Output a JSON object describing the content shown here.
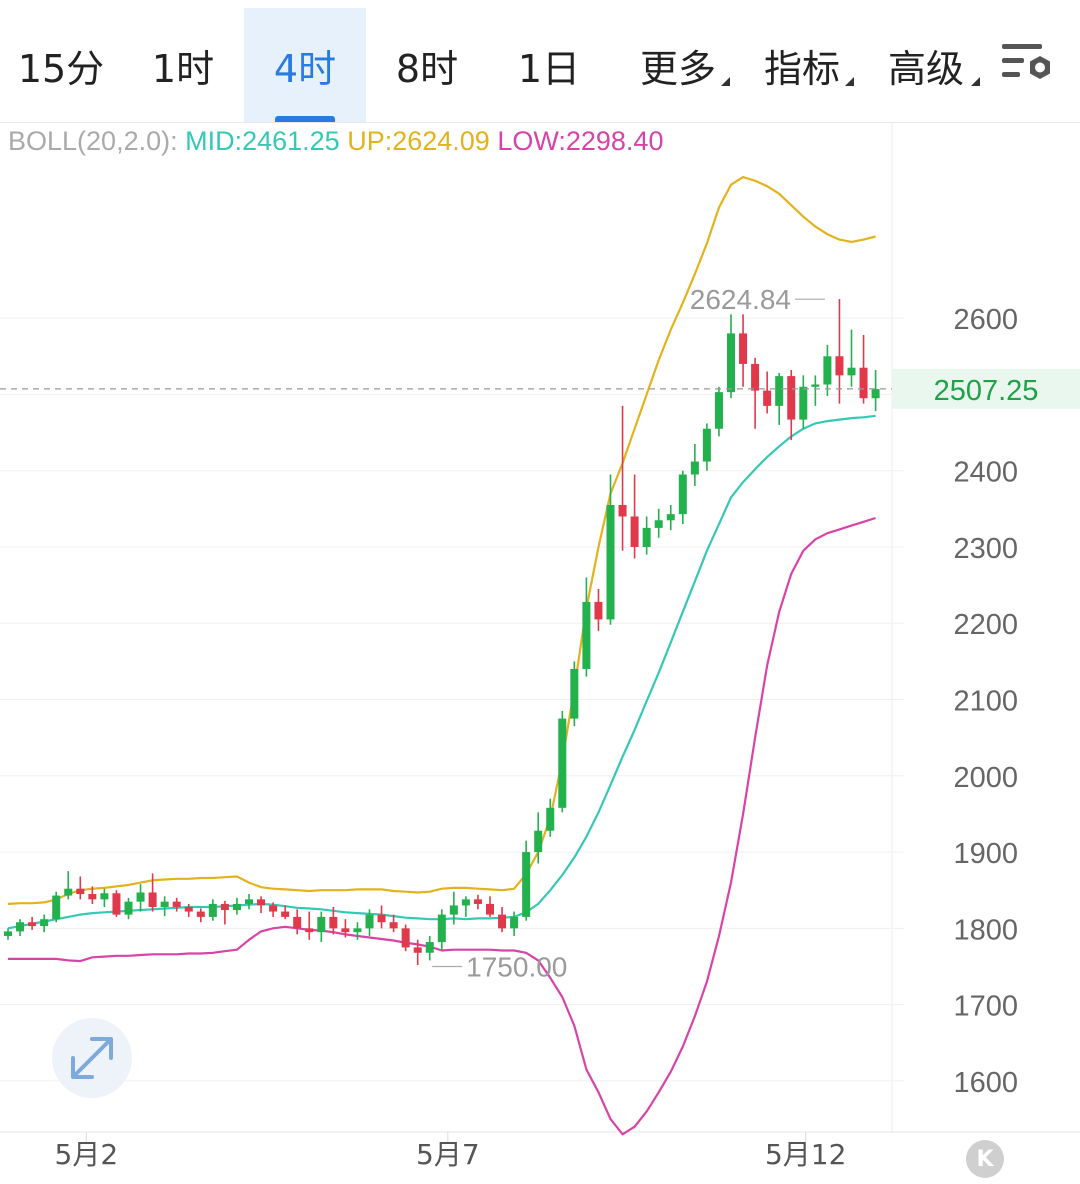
{
  "toolbar": {
    "tabs": [
      {
        "label": "15分",
        "active": false,
        "has_caret": false
      },
      {
        "label": "1时",
        "active": false,
        "has_caret": false
      },
      {
        "label": "4时",
        "active": true,
        "has_caret": false
      },
      {
        "label": "8时",
        "active": false,
        "has_caret": false
      },
      {
        "label": "1日",
        "active": false,
        "has_caret": false
      },
      {
        "label": "更多",
        "active": false,
        "has_caret": true
      },
      {
        "label": "指标",
        "active": false,
        "has_caret": true
      },
      {
        "label": "高级",
        "active": false,
        "has_caret": true
      }
    ],
    "settings_icon": "chart-settings-gear-icon"
  },
  "legend": {
    "name": "BOLL(20,2.0):",
    "mid": "MID:2461.25",
    "up": "UP:2624.09",
    "low": "LOW:2298.40"
  },
  "colors": {
    "up_candle": "#22b14c",
    "down_candle": "#e0394b",
    "mid_line": "#35c8b5",
    "up_line": "#e3b21c",
    "low_line": "#d843a8",
    "price_tag_bg": "#e9f7ee",
    "price_tag_text": "#22a04a",
    "active_tab": "#2a7be0"
  },
  "icons": {
    "expand": "expand-arrows-icon",
    "logo": "k-logo-icon"
  },
  "logo_text": "K",
  "chart_data": {
    "type": "candlestick",
    "y_ticks": [
      1600,
      1700,
      1800,
      1900,
      2000,
      2100,
      2200,
      2300,
      2400,
      2500,
      2600
    ],
    "y_tick_labels": [
      "1600",
      "1700",
      "1800",
      "1900",
      "2000",
      "2100",
      "2200",
      "2300",
      "2400",
      "2600"
    ],
    "ylim": [
      1533,
      2768
    ],
    "x_labels": [
      {
        "label": "5月2",
        "index": 6.5
      },
      {
        "label": "5月7",
        "index": 36.5
      },
      {
        "label": "5月12",
        "index": 66.2
      }
    ],
    "last_price": 2507.25,
    "last_price_label": "2507.25",
    "max_label": {
      "text": "2624.84",
      "value": 2624.84,
      "index": 67.8
    },
    "min_label": {
      "text": "1750.00",
      "value": 1750.0,
      "index": 35.2
    },
    "candles": [
      [
        1790,
        1800,
        1785,
        1796
      ],
      [
        1796,
        1812,
        1790,
        1808
      ],
      [
        1808,
        1815,
        1798,
        1803
      ],
      [
        1803,
        1818,
        1795,
        1812
      ],
      [
        1812,
        1848,
        1808,
        1843
      ],
      [
        1843,
        1875,
        1838,
        1852
      ],
      [
        1852,
        1868,
        1838,
        1845
      ],
      [
        1845,
        1855,
        1832,
        1838
      ],
      [
        1838,
        1852,
        1828,
        1846
      ],
      [
        1846,
        1850,
        1815,
        1818
      ],
      [
        1818,
        1840,
        1812,
        1835
      ],
      [
        1835,
        1858,
        1822,
        1847
      ],
      [
        1847,
        1872,
        1822,
        1828
      ],
      [
        1828,
        1842,
        1816,
        1835
      ],
      [
        1835,
        1840,
        1822,
        1828
      ],
      [
        1828,
        1832,
        1815,
        1822
      ],
      [
        1822,
        1826,
        1808,
        1815
      ],
      [
        1815,
        1838,
        1810,
        1832
      ],
      [
        1832,
        1836,
        1805,
        1824
      ],
      [
        1824,
        1840,
        1818,
        1832
      ],
      [
        1832,
        1845,
        1825,
        1838
      ],
      [
        1838,
        1842,
        1820,
        1830
      ],
      [
        1830,
        1834,
        1815,
        1822
      ],
      [
        1822,
        1830,
        1812,
        1815
      ],
      [
        1815,
        1825,
        1792,
        1800
      ],
      [
        1800,
        1822,
        1785,
        1795
      ],
      [
        1795,
        1822,
        1782,
        1815
      ],
      [
        1815,
        1828,
        1792,
        1800
      ],
      [
        1800,
        1812,
        1788,
        1795
      ],
      [
        1795,
        1808,
        1785,
        1800
      ],
      [
        1800,
        1825,
        1790,
        1818
      ],
      [
        1818,
        1830,
        1800,
        1808
      ],
      [
        1808,
        1818,
        1795,
        1800
      ],
      [
        1800,
        1805,
        1770,
        1775
      ],
      [
        1775,
        1785,
        1752,
        1768
      ],
      [
        1768,
        1790,
        1758,
        1782
      ],
      [
        1782,
        1825,
        1772,
        1818
      ],
      [
        1818,
        1848,
        1805,
        1830
      ],
      [
        1830,
        1842,
        1815,
        1838
      ],
      [
        1838,
        1844,
        1825,
        1832
      ],
      [
        1832,
        1842,
        1815,
        1818
      ],
      [
        1818,
        1828,
        1795,
        1800
      ],
      [
        1800,
        1822,
        1790,
        1815
      ],
      [
        1815,
        1915,
        1810,
        1900
      ],
      [
        1900,
        1952,
        1885,
        1928
      ],
      [
        1928,
        1970,
        1920,
        1958
      ],
      [
        1958,
        2085,
        1952,
        2075
      ],
      [
        2075,
        2150,
        2065,
        2140
      ],
      [
        2140,
        2260,
        2130,
        2228
      ],
      [
        2228,
        2245,
        2190,
        2205
      ],
      [
        2205,
        2395,
        2198,
        2355
      ],
      [
        2355,
        2485,
        2295,
        2340
      ],
      [
        2340,
        2395,
        2285,
        2300
      ],
      [
        2300,
        2340,
        2290,
        2325
      ],
      [
        2325,
        2350,
        2312,
        2335
      ],
      [
        2335,
        2355,
        2322,
        2343
      ],
      [
        2343,
        2400,
        2330,
        2395
      ],
      [
        2395,
        2435,
        2380,
        2412
      ],
      [
        2412,
        2462,
        2400,
        2455
      ],
      [
        2455,
        2510,
        2445,
        2503
      ],
      [
        2503,
        2605,
        2495,
        2580
      ],
      [
        2580,
        2605,
        2510,
        2540
      ],
      [
        2540,
        2548,
        2455,
        2505
      ],
      [
        2505,
        2530,
        2475,
        2485
      ],
      [
        2485,
        2528,
        2460,
        2524
      ],
      [
        2524,
        2532,
        2440,
        2467
      ],
      [
        2467,
        2525,
        2455,
        2510
      ],
      [
        2510,
        2525,
        2485,
        2513
      ],
      [
        2513,
        2565,
        2498,
        2550
      ],
      [
        2550,
        2625,
        2488,
        2525
      ],
      [
        2525,
        2585,
        2510,
        2535
      ],
      [
        2535,
        2578,
        2488,
        2495
      ],
      [
        2495,
        2532,
        2478,
        2507
      ]
    ],
    "boll_up": [
      1832,
      1833,
      1833,
      1834,
      1838,
      1845,
      1850,
      1852,
      1853,
      1855,
      1857,
      1860,
      1863,
      1864,
      1865,
      1865,
      1866,
      1866,
      1867,
      1868,
      1860,
      1854,
      1852,
      1851,
      1850,
      1849,
      1850,
      1850,
      1850,
      1851,
      1851,
      1851,
      1849,
      1848,
      1847,
      1848,
      1852,
      1853,
      1853,
      1852,
      1851,
      1850,
      1852,
      1871,
      1900,
      1945,
      2020,
      2115,
      2220,
      2300,
      2370,
      2410,
      2455,
      2500,
      2545,
      2585,
      2620,
      2658,
      2698,
      2745,
      2775,
      2785,
      2780,
      2773,
      2763,
      2748,
      2733,
      2720,
      2710,
      2703,
      2700,
      2703,
      2707
    ],
    "boll_mid": [
      1800,
      1803,
      1806,
      1809,
      1812,
      1815,
      1818,
      1820,
      1821,
      1822,
      1823,
      1824,
      1825,
      1826,
      1827,
      1828,
      1828,
      1828,
      1829,
      1830,
      1831,
      1832,
      1831,
      1829,
      1827,
      1826,
      1825,
      1823,
      1821,
      1820,
      1819,
      1818,
      1816,
      1814,
      1813,
      1812,
      1812,
      1813,
      1812,
      1813,
      1813,
      1814,
      1815,
      1821,
      1832,
      1850,
      1870,
      1893,
      1920,
      1952,
      1988,
      2025,
      2060,
      2098,
      2135,
      2175,
      2215,
      2255,
      2295,
      2330,
      2365,
      2385,
      2402,
      2418,
      2432,
      2445,
      2455,
      2462,
      2465,
      2467,
      2469,
      2470,
      2472
    ],
    "boll_low": [
      1760,
      1760,
      1760,
      1760,
      1760,
      1758,
      1757,
      1762,
      1763,
      1764,
      1764,
      1765,
      1766,
      1766,
      1766,
      1767,
      1767,
      1768,
      1770,
      1772,
      1785,
      1796,
      1800,
      1802,
      1800,
      1798,
      1797,
      1795,
      1792,
      1790,
      1788,
      1786,
      1784,
      1781,
      1779,
      1776,
      1771,
      1772,
      1772,
      1772,
      1772,
      1771,
      1771,
      1768,
      1758,
      1735,
      1710,
      1672,
      1615,
      1585,
      1550,
      1530,
      1540,
      1560,
      1585,
      1612,
      1645,
      1685,
      1730,
      1790,
      1860,
      1950,
      2050,
      2145,
      2215,
      2265,
      2295,
      2310,
      2318,
      2323,
      2328,
      2333,
      2338
    ]
  }
}
